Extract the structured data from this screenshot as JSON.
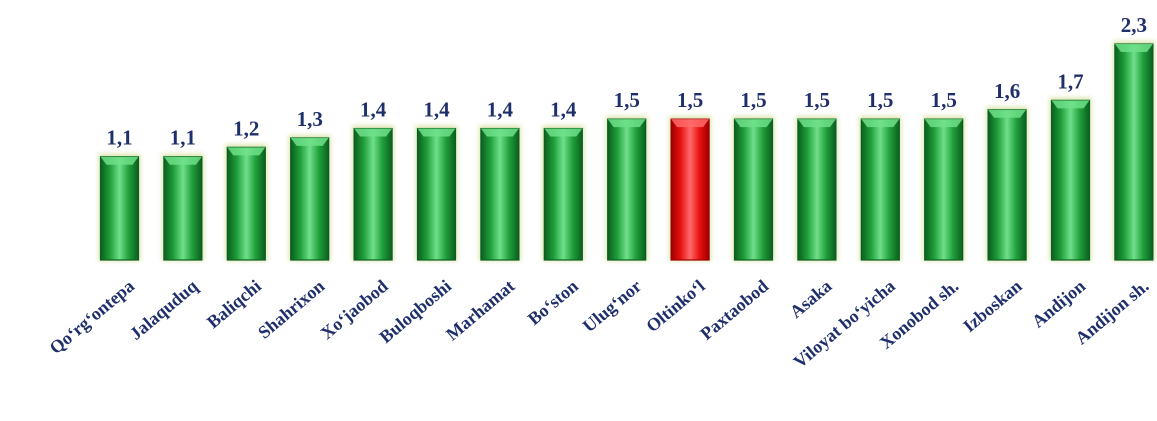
{
  "chart_data": {
    "type": "bar",
    "title": "",
    "xlabel": "",
    "ylabel": "",
    "ylim": [
      0,
      2.3
    ],
    "grid": false,
    "legend": "none",
    "categories": [
      "Qo‘rg‘ontepa",
      "Jalaquduq",
      "Baliqchi",
      "Shahrixon",
      "Xo‘jaobod",
      "Buloqboshi",
      "Marhamat",
      "Bo‘ston",
      "Ulug‘nor",
      "Oltinko‘l",
      "Paxtaobod",
      "Asaka",
      "Viloyat bo‘yicha",
      "Xonobod sh.",
      "Izboskan",
      "Andijon",
      "Andijon sh."
    ],
    "values": [
      1.1,
      1.1,
      1.2,
      1.3,
      1.4,
      1.4,
      1.4,
      1.4,
      1.5,
      1.5,
      1.5,
      1.5,
      1.5,
      1.5,
      1.6,
      1.7,
      2.3
    ],
    "value_labels": [
      "1,1",
      "1,1",
      "1,2",
      "1,3",
      "1,4",
      "1,4",
      "1,4",
      "1,4",
      "1,5",
      "1,5",
      "1,5",
      "1,5",
      "1,5",
      "1,5",
      "1,6",
      "1,7",
      "2,3"
    ],
    "highlight_index": 9,
    "colors": {
      "bar": "#1f9e3a",
      "bar_dark": "#0b5f1f",
      "bar_light": "#6fe08a",
      "highlight": "#e81010",
      "highlight_dark": "#9a0000",
      "highlight_light": "#ff6a6a",
      "label": "#1f2f6b"
    }
  }
}
